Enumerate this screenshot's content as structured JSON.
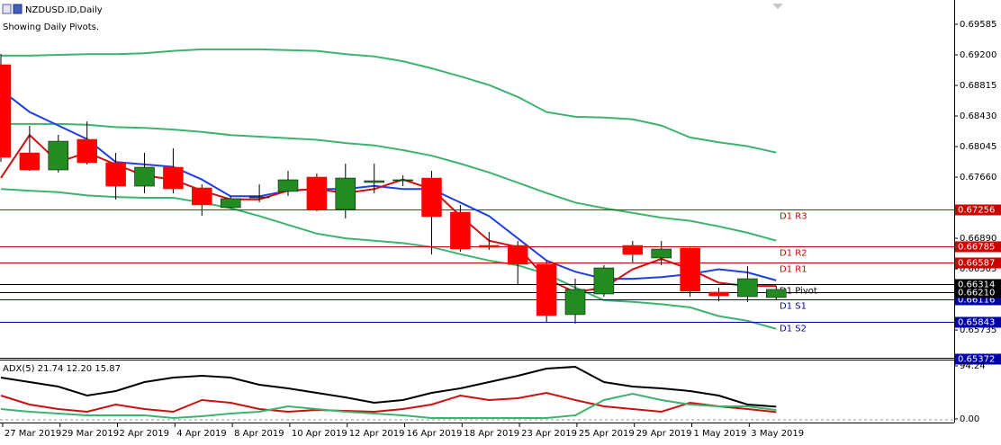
{
  "chart_data": [
    {
      "type": "candlestick",
      "title": "NZDUSD.ID,Daily",
      "subtitle": "Showing Daily Pivots.",
      "categories": [
        null,
        "27 Mar 2019",
        null,
        "29 Mar 2019",
        null,
        "2 Apr 2019",
        null,
        "4 Apr 2019",
        null,
        "8 Apr 2019",
        null,
        "10 Apr 2019",
        null,
        "12 Apr 2019",
        null,
        "16 Apr 2019",
        null,
        "18 Apr 2019",
        null,
        "23 Apr 2019",
        null,
        "25 Apr 2019",
        null,
        "29 Apr 2019",
        null,
        "1 May 2019",
        null,
        "3 May 2019"
      ],
      "open": [
        0.69076,
        0.67966,
        0.67751,
        0.68136,
        0.67842,
        0.67547,
        0.67785,
        0.67525,
        0.67276,
        0.674,
        0.6748,
        0.67661,
        0.67253,
        0.67593,
        0.67615,
        0.67649,
        0.67219,
        0.668,
        0.668,
        0.66563,
        0.65929,
        0.66189,
        0.668,
        0.66642,
        0.66766,
        0.66212,
        0.66155,
        0.66144
      ],
      "high": [
        0.69211,
        0.68306,
        0.68193,
        0.68362,
        0.67966,
        0.67966,
        0.68023,
        0.6757,
        0.67423,
        0.6757,
        0.6774,
        0.67706,
        0.6783,
        0.6783,
        0.67683,
        0.6774,
        0.6731,
        0.6697,
        0.66857,
        0.66608,
        0.66381,
        0.66551,
        0.66857,
        0.66857,
        0.66778,
        0.66268,
        0.6654,
        0.66291
      ],
      "low": [
        0.67853,
        0.6774,
        0.67717,
        0.67819,
        0.67378,
        0.67457,
        0.67457,
        0.67174,
        0.67264,
        0.67344,
        0.67423,
        0.6723,
        0.6714,
        0.67457,
        0.67547,
        0.66687,
        0.66721,
        0.66744,
        0.66314,
        0.65838,
        0.65815,
        0.66155,
        0.66585,
        0.66551,
        0.66155,
        0.66098,
        0.66087,
        0.66121
      ],
      "close": [
        0.6791,
        0.67751,
        0.68113,
        0.67842,
        0.67547,
        0.67785,
        0.67513,
        0.6731,
        0.67389,
        0.67412,
        0.67627,
        0.67253,
        0.67649,
        0.67615,
        0.67627,
        0.67163,
        0.66755,
        0.66778,
        0.66563,
        0.65917,
        0.66246,
        0.66517,
        0.66687,
        0.66755,
        0.66223,
        0.66166,
        0.66381,
        0.66246
      ],
      "up_color": "#228b22",
      "down_color": "#ff0000",
      "series": [
        {
          "color": "#3cb371",
          "values": [
            0.6919,
            0.6919,
            0.692,
            0.6921,
            0.6921,
            0.6922,
            0.6925,
            0.6927,
            0.6927,
            0.6927,
            0.6926,
            0.6925,
            0.6921,
            0.6918,
            0.6912,
            0.6903,
            0.6893,
            0.6882,
            0.6867,
            0.6848,
            0.6842,
            0.6841,
            0.6839,
            0.6831,
            0.6816,
            0.681,
            0.6805,
            0.6797
          ]
        },
        {
          "color": "#3cb371",
          "values": [
            0.6833,
            0.6833,
            0.6833,
            0.6832,
            0.6829,
            0.6828,
            0.6826,
            0.6823,
            0.6819,
            0.6817,
            0.6815,
            0.6813,
            0.6809,
            0.6806,
            0.68,
            0.6793,
            0.6783,
            0.6772,
            0.6759,
            0.6746,
            0.6734,
            0.6727,
            0.6721,
            0.6715,
            0.6711,
            0.6704,
            0.6696,
            0.6686
          ]
        },
        {
          "color": "#3cb371",
          "values": [
            0.6751,
            0.6749,
            0.6747,
            0.6743,
            0.6741,
            0.674,
            0.674,
            0.6734,
            0.6727,
            0.6717,
            0.6706,
            0.6695,
            0.6689,
            0.6686,
            0.6683,
            0.6678,
            0.6669,
            0.6661,
            0.6655,
            0.6644,
            0.6627,
            0.6611,
            0.6609,
            0.6606,
            0.6602,
            0.6591,
            0.6585,
            0.6575
          ]
        },
        {
          "color": "#1f3fe0",
          "values": [
            0.6876,
            0.6848,
            0.6831,
            0.6814,
            0.6785,
            0.6782,
            0.6779,
            0.6763,
            0.6742,
            0.6742,
            0.6749,
            0.6751,
            0.6751,
            0.6755,
            0.6751,
            0.6751,
            0.6734,
            0.6717,
            0.6689,
            0.6661,
            0.6647,
            0.6638,
            0.6638,
            0.664,
            0.6644,
            0.665,
            0.6646,
            0.6636
          ]
        },
        {
          "color": "#d01010",
          "values": [
            0.6765,
            0.6819,
            0.6785,
            0.6797,
            0.6782,
            0.6768,
            0.6763,
            0.6749,
            0.6738,
            0.6738,
            0.6749,
            0.6751,
            0.6746,
            0.6751,
            0.6763,
            0.6751,
            0.6717,
            0.6686,
            0.6678,
            0.6638,
            0.6621,
            0.6627,
            0.665,
            0.6663,
            0.665,
            0.6633,
            0.6629,
            0.6629
          ]
        }
      ],
      "levels": [
        {
          "label": "D1 R3",
          "value": 0.67256,
          "color": "#cc0000"
        },
        {
          "label": "D1 R2",
          "value": 0.66785,
          "color": "#cc0000"
        },
        {
          "label": "D1 R1",
          "value": 0.66587,
          "color": "#cc0000"
        },
        {
          "label": "D1 Pivot",
          "value": 0.66314,
          "color": "#000000"
        },
        {
          "label": "D1 S1",
          "value": 0.66116,
          "color": "#0000aa"
        },
        {
          "label": "D1 S2",
          "value": 0.65843,
          "color": "#0000aa"
        }
      ],
      "price_tags": [
        {
          "value": 0.6621,
          "label": "0.66210",
          "color": "#000000"
        },
        {
          "value": 0.65372,
          "color": "#0000aa"
        }
      ],
      "ylim": [
        0.65385,
        0.69891
      ],
      "yticks": [
        0.69585,
        {
          "value": 0.692,
          "label": "0.69200"
        },
        0.68815,
        {
          "value": 0.6843,
          "label": "0.68430"
        },
        0.68045,
        {
          "value": 0.6766,
          "label": "0.67660"
        },
        {
          "value": 0.6689,
          "label": "0.66890"
        },
        0.66505,
        0.65735
      ]
    },
    {
      "type": "line",
      "title": "ADX(5) 21.74 12.20 15.87",
      "series": [
        {
          "color": "#000000",
          "values": [
            73.5,
            65.5,
            57.5,
            41.5,
            49.5,
            65.5,
            73.5,
            76.7,
            73.5,
            60.7,
            54.3,
            46.3,
            38.3,
            28.7,
            33.5,
            46.3,
            54.3,
            65.5,
            76.7,
            89.4,
            92.6,
            65.5,
            57.5,
            54.3,
            49.5,
            41.5,
            25.6,
            21.74
          ]
        },
        {
          "color": "#cc1010",
          "values": [
            41.5,
            25.6,
            17.6,
            12.8,
            25.6,
            17.6,
            12.8,
            33.5,
            28.7,
            17.6,
            12.8,
            16.0,
            14.4,
            12.8,
            17.6,
            25.6,
            41.5,
            33.5,
            36.7,
            46.3,
            33.5,
            22.4,
            17.6,
            12.8,
            28.7,
            22.4,
            17.6,
            12.2
          ]
        },
        {
          "color": "#3cb371",
          "values": [
            17.6,
            12.8,
            9.6,
            6.4,
            6.4,
            6.4,
            1.6,
            4.8,
            9.6,
            12.8,
            22.4,
            17.6,
            12.8,
            9.6,
            6.4,
            1.6,
            1.6,
            1.6,
            1.6,
            1.6,
            6.4,
            33.5,
            44.7,
            33.5,
            25.6,
            22.4,
            22.4,
            15.87
          ]
        }
      ],
      "ylim": [
        0,
        94.24
      ],
      "yticks": [
        94.24,
        {
          "value": 0,
          "label": "0.00"
        }
      ]
    }
  ]
}
